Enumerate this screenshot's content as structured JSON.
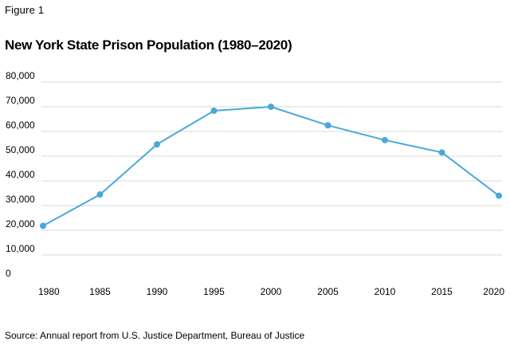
{
  "figure_label": "Figure 1",
  "source_note": "Source: Annual report from U.S. Justice Department, Bureau of Justice",
  "chart_data": {
    "type": "line",
    "title": "New York State Prison Population (1980–2020)",
    "xlabel": "",
    "ylabel": "",
    "x": [
      1980,
      1985,
      1990,
      1995,
      2000,
      2005,
      2010,
      2015,
      2020
    ],
    "series": [
      {
        "values": [
          21800,
          34500,
          54800,
          68400,
          70000,
          62500,
          56500,
          51500,
          34000
        ]
      }
    ],
    "xlim": [
      1980,
      2020
    ],
    "ylim": [
      0,
      80000
    ],
    "yticks": [
      0,
      10000,
      20000,
      30000,
      40000,
      50000,
      60000,
      70000,
      80000
    ],
    "ytick_labels": [
      "0",
      "10,000",
      "20,000",
      "30,000",
      "40,000",
      "50,000",
      "60,000",
      "70,000",
      "80,000"
    ],
    "xtick_labels": [
      "1980",
      "1985",
      "1990",
      "1995",
      "2000",
      "2005",
      "2010",
      "2015",
      "2020"
    ],
    "grid": true,
    "legend": "none",
    "line_color": "#4aa8d8",
    "grid_color": "#d9d9d9"
  }
}
